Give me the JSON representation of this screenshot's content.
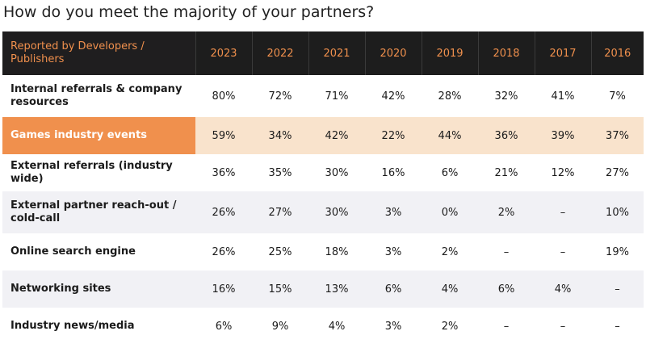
{
  "title": "How do you meet the majority of your partners?",
  "chart_data": {
    "type": "table",
    "title": "How do you meet the majority of your partners?",
    "row_header": "Reported by Developers / Publishers",
    "columns": [
      "2023",
      "2022",
      "2021",
      "2020",
      "2019",
      "2018",
      "2017",
      "2016"
    ],
    "rows": [
      {
        "label": "Internal referrals & company resources",
        "values": [
          "80%",
          "72%",
          "71%",
          "42%",
          "28%",
          "32%",
          "41%",
          "7%"
        ]
      },
      {
        "label": "Games industry events",
        "values": [
          "59%",
          "34%",
          "42%",
          "22%",
          "44%",
          "36%",
          "39%",
          "37%"
        ],
        "highlight": true
      },
      {
        "label": "External referrals (industry wide)",
        "values": [
          "36%",
          "35%",
          "30%",
          "16%",
          "6%",
          "21%",
          "12%",
          "27%"
        ]
      },
      {
        "label": "External partner reach-out / cold-call",
        "values": [
          "26%",
          "27%",
          "30%",
          "3%",
          "0%",
          "2%",
          "–",
          "10%"
        ]
      },
      {
        "label": "Online search engine",
        "values": [
          "26%",
          "25%",
          "18%",
          "3%",
          "2%",
          "–",
          "–",
          "19%"
        ]
      },
      {
        "label": "Networking sites",
        "values": [
          "16%",
          "15%",
          "13%",
          "6%",
          "4%",
          "6%",
          "4%",
          "–"
        ]
      },
      {
        "label": "Industry news/media",
        "values": [
          "6%",
          "9%",
          "4%",
          "3%",
          "2%",
          "–",
          "–",
          "–"
        ]
      }
    ]
  },
  "colors": {
    "header_bg": "#1d1d1d",
    "header_text": "#f0904d",
    "highlight_label": "#f0904d",
    "highlight_row": "#f9e3cc",
    "alt_row": "#f1f1f5"
  }
}
